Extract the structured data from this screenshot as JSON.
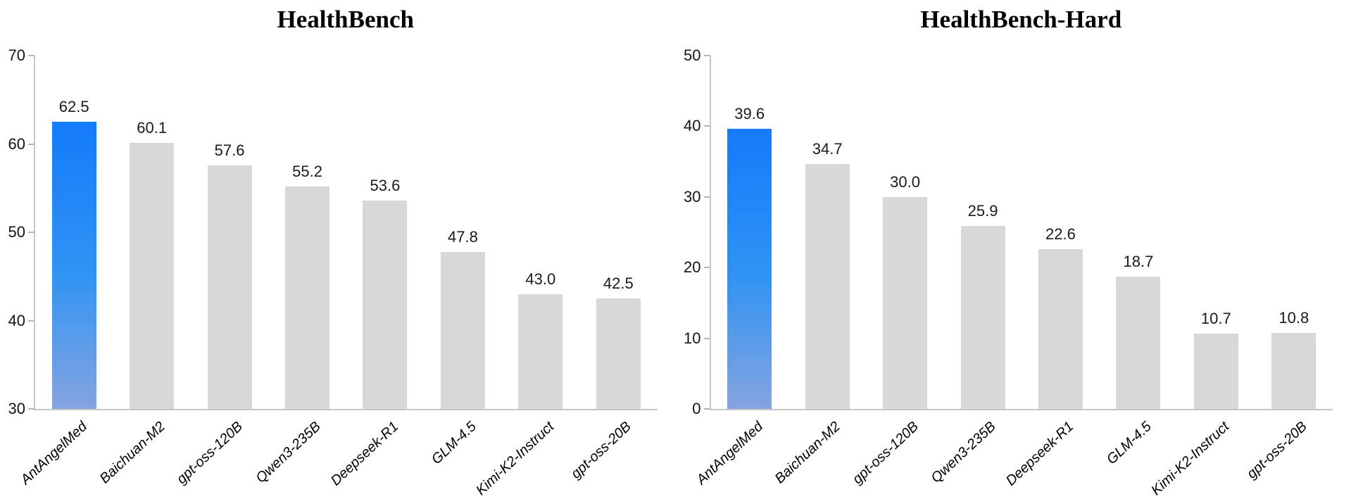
{
  "chart_data": [
    {
      "type": "bar",
      "title": "HealthBench",
      "categories": [
        "AntAngelMed",
        "Baichuan-M2",
        "gpt-oss-120B",
        "Qwen3-235B",
        "Deepseek-R1",
        "GLM-4.5",
        "Kimi-K2-Instruct",
        "gpt-oss-20B"
      ],
      "values": [
        62.5,
        60.1,
        57.6,
        55.2,
        53.6,
        47.8,
        43.0,
        42.5
      ],
      "value_labels": [
        "62.5",
        "60.1",
        "57.6",
        "55.2",
        "53.6",
        "47.8",
        "43.0",
        "42.5"
      ],
      "ylim": [
        30,
        70
      ],
      "yticks": [
        "30",
        "40",
        "50",
        "60",
        "70"
      ],
      "highlight_index": 0,
      "grid": "off",
      "legend": "none"
    },
    {
      "type": "bar",
      "title": "HealthBench-Hard",
      "categories": [
        "AntAngelMed",
        "Baichuan-M2",
        "gpt-oss-120B",
        "Qwen3-235B",
        "Deepseek-R1",
        "GLM-4.5",
        "Kimi-K2-Instruct",
        "gpt-oss-20B"
      ],
      "values": [
        39.6,
        34.7,
        30.0,
        25.9,
        22.6,
        18.7,
        10.7,
        10.8
      ],
      "value_labels": [
        "39.6",
        "34.7",
        "30.0",
        "25.9",
        "22.6",
        "18.7",
        "10.7",
        "10.8"
      ],
      "ylim": [
        0,
        50
      ],
      "yticks": [
        "0",
        "10",
        "20",
        "30",
        "40",
        "50"
      ],
      "highlight_index": 0,
      "grid": "off",
      "legend": "none"
    }
  ],
  "colors": {
    "background": "#ffffff",
    "bar_default": "#d8d8d8",
    "highlight_top": "#147bfa",
    "highlight_mid": "#2f93f4",
    "highlight_bottom": "#85a4df",
    "axis_line": "#c6c6c6",
    "tick_mark": "#b5b5b5",
    "label_text": "#1a1a1a"
  }
}
